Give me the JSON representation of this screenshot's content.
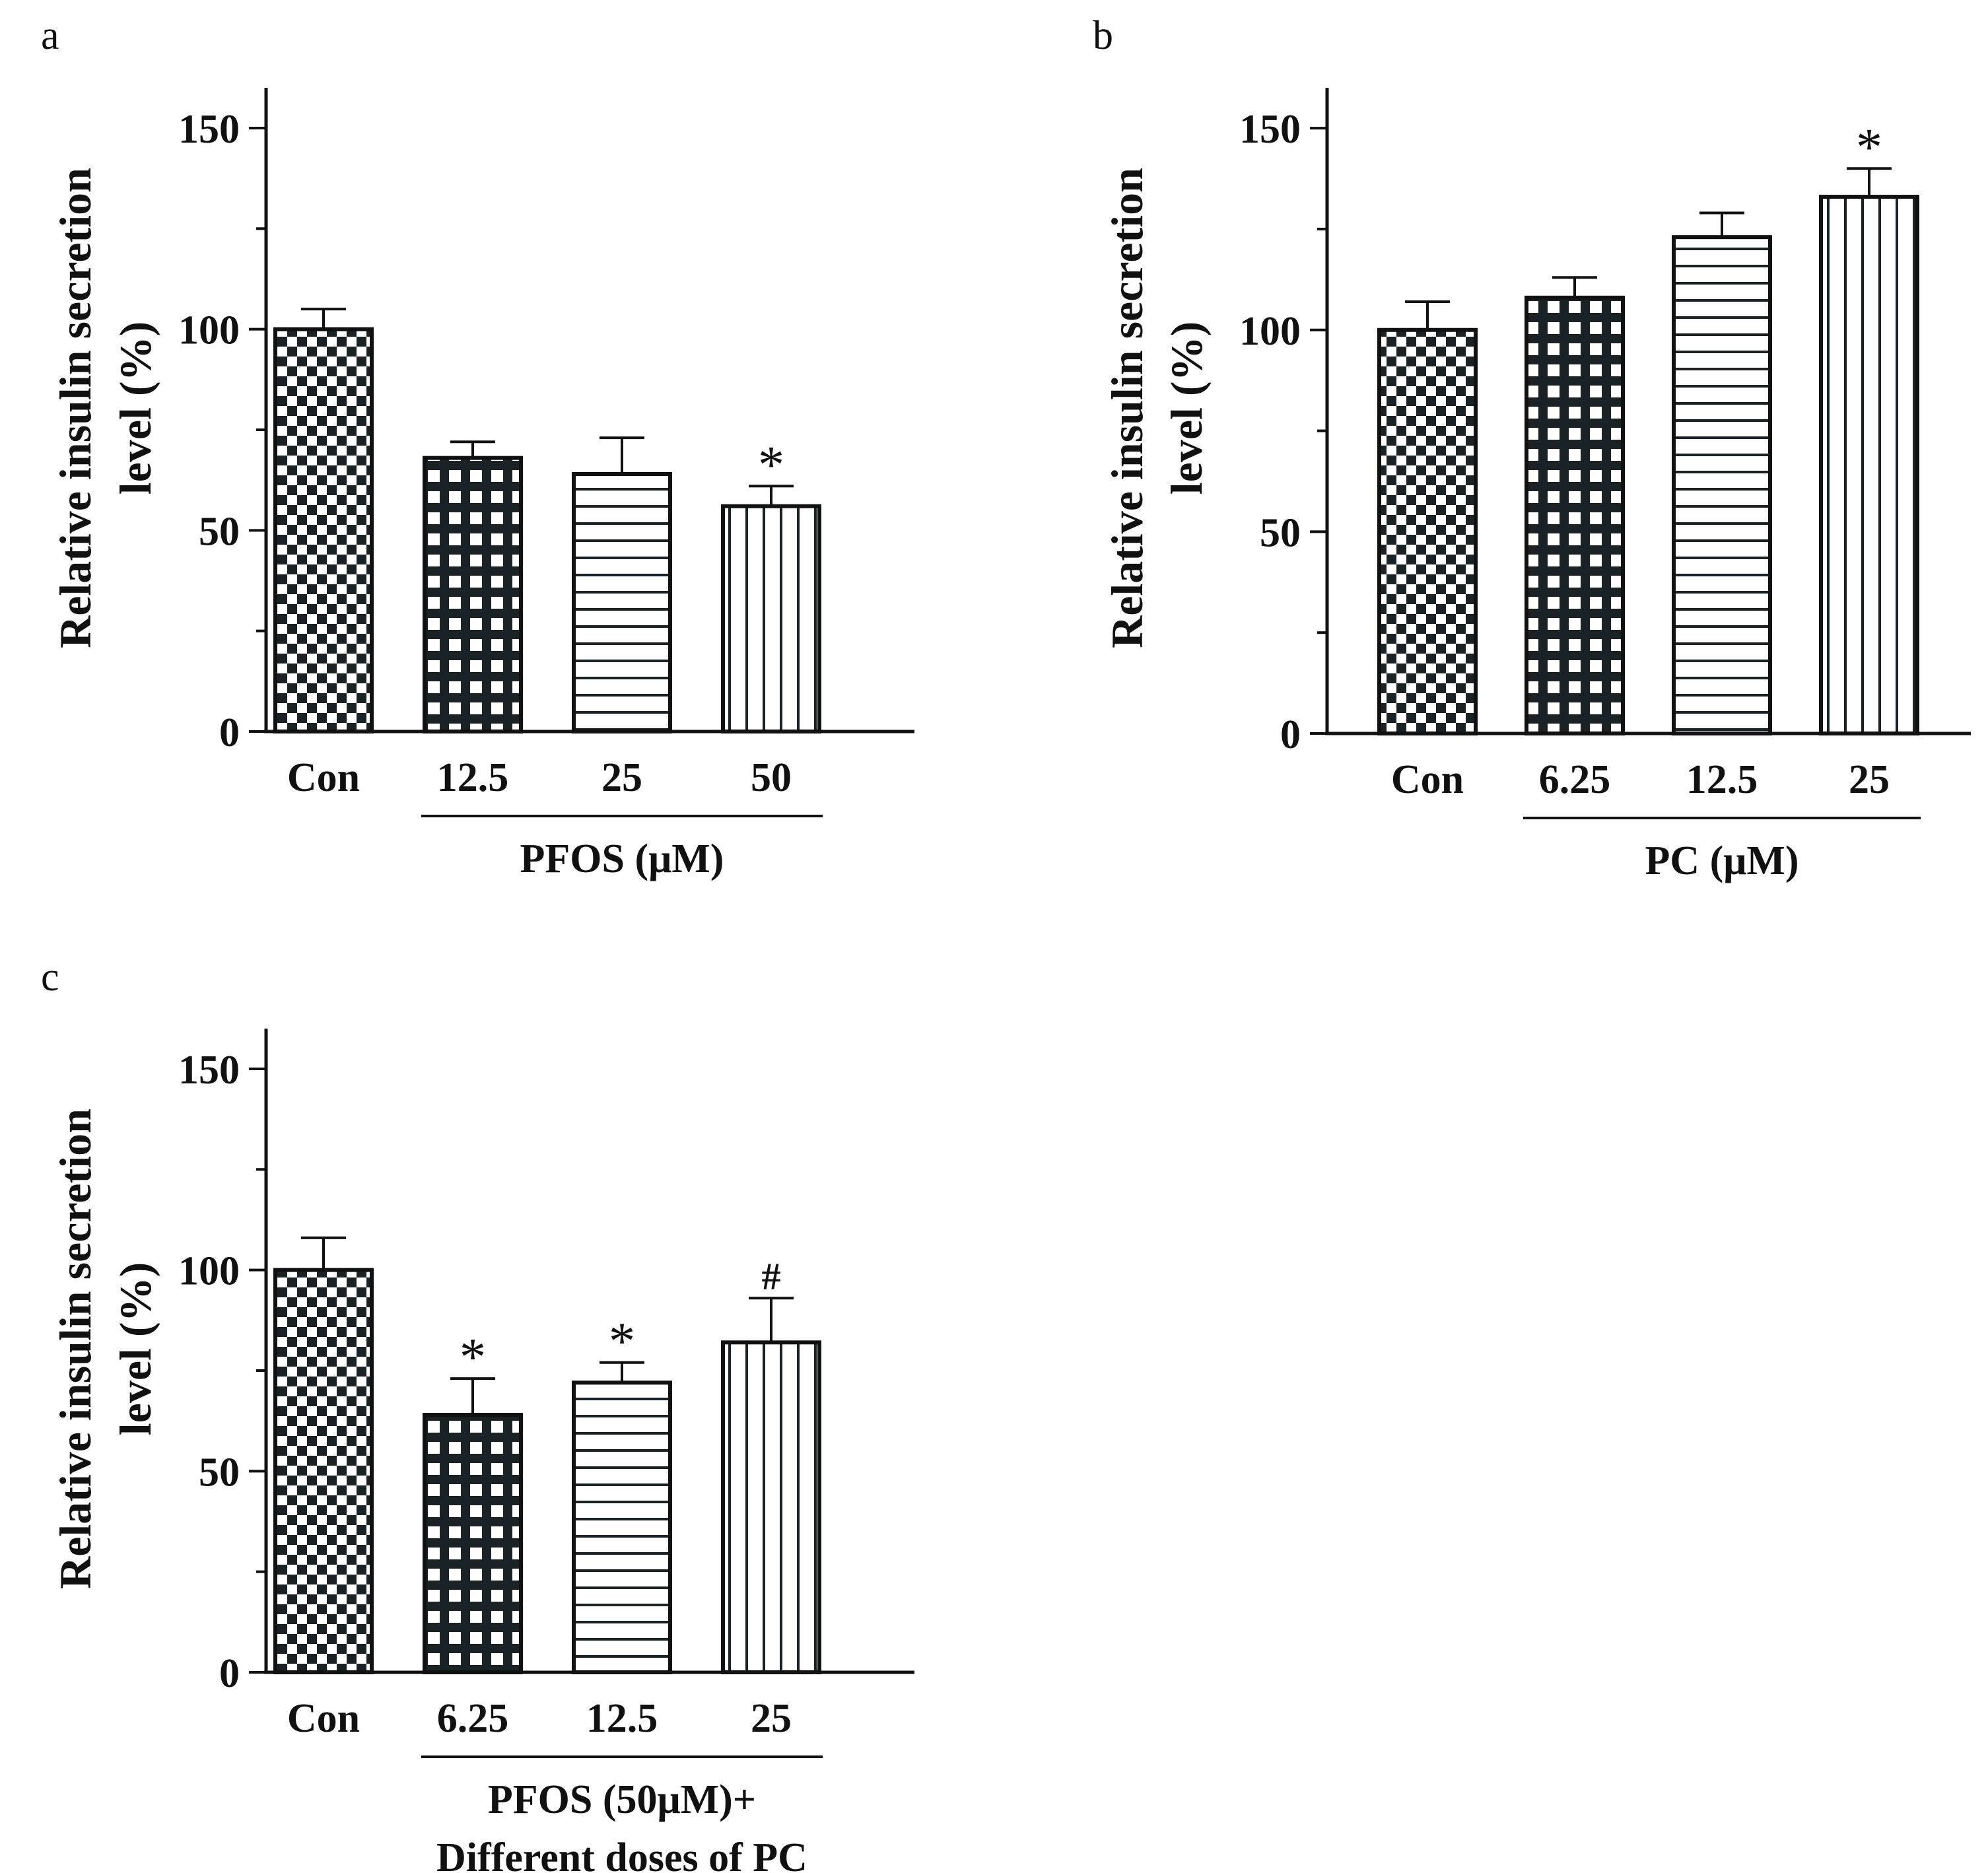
{
  "figure": {
    "colors": {
      "ink": "#111111",
      "background": "#ffffff"
    },
    "patterns": [
      "checker-pattern",
      "grid-pattern",
      "horizontal-lines-pattern",
      "vertical-lines-pattern"
    ]
  },
  "chart_data": [
    {
      "panel": "a",
      "type": "bar",
      "ylabel_line1": "Relative insulin secretion",
      "ylabel_line2": "level (%)",
      "ylim": [
        0,
        160
      ],
      "yticks": [
        0,
        50,
        100,
        150
      ],
      "grid": false,
      "categories": [
        "Con",
        "12.5",
        "25",
        "50"
      ],
      "values": [
        100,
        68,
        64,
        56
      ],
      "errors": [
        5,
        4,
        9,
        5
      ],
      "markers": [
        "",
        "",
        "",
        "*"
      ],
      "group_label_lines": [
        "PFOS (μM)"
      ],
      "group_start_index": 1
    },
    {
      "panel": "b",
      "type": "bar",
      "ylabel_line1": "Relative insulin secretion",
      "ylabel_line2": "level (%)",
      "ylim": [
        0,
        160
      ],
      "yticks": [
        0,
        50,
        100,
        150
      ],
      "grid": false,
      "categories": [
        "Con",
        "6.25",
        "12.5",
        "25"
      ],
      "values": [
        100,
        108,
        123,
        133
      ],
      "errors": [
        7,
        5,
        6,
        7
      ],
      "markers": [
        "",
        "",
        "",
        "*"
      ],
      "group_label_lines": [
        "PC (μM)"
      ],
      "group_start_index": 1
    },
    {
      "panel": "c",
      "type": "bar",
      "ylabel_line1": "Relative insulin secretion",
      "ylabel_line2": "level (%)",
      "ylim": [
        0,
        160
      ],
      "yticks": [
        0,
        50,
        100,
        150
      ],
      "grid": false,
      "categories": [
        "Con",
        "6.25",
        "12.5",
        "25"
      ],
      "values": [
        100,
        64,
        72,
        82
      ],
      "errors": [
        8,
        9,
        5,
        11
      ],
      "markers": [
        "",
        "*",
        "*",
        "#"
      ],
      "group_label_lines": [
        "PFOS (50μM)+",
        "Different doses of PC"
      ],
      "group_start_index": 1
    }
  ]
}
